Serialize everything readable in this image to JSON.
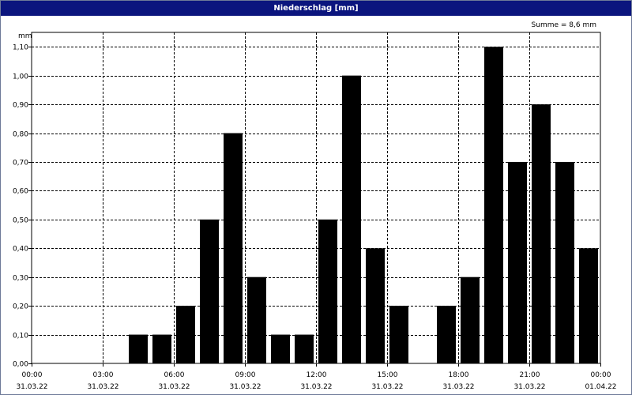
{
  "window": {
    "title": "Niederschlag [mm]"
  },
  "chart_data": {
    "type": "bar",
    "title": "Niederschlag [mm]",
    "ylabel": "mm",
    "annotation": "Summe = 8,6 mm",
    "ylim": [
      0,
      1.15
    ],
    "y_ticks": [
      "0,00",
      "0,10",
      "0,20",
      "0,30",
      "0,40",
      "0,50",
      "0,60",
      "0,70",
      "0,80",
      "0,90",
      "1,00",
      "1,10"
    ],
    "x_ticks": [
      {
        "time": "00:00",
        "date": "31.03.22"
      },
      {
        "time": "03:00",
        "date": "31.03.22"
      },
      {
        "time": "06:00",
        "date": "31.03.22"
      },
      {
        "time": "09:00",
        "date": "31.03.22"
      },
      {
        "time": "12:00",
        "date": "31.03.22"
      },
      {
        "time": "15:00",
        "date": "31.03.22"
      },
      {
        "time": "18:00",
        "date": "31.03.22"
      },
      {
        "time": "21:00",
        "date": "31.03.22"
      },
      {
        "time": "00:00",
        "date": "01.04.22"
      }
    ],
    "bar_interval_hours": 1,
    "values": [
      0,
      0,
      0,
      0,
      0.1,
      0.1,
      0.2,
      0.5,
      0.8,
      0.3,
      0.1,
      0.1,
      0.5,
      1.0,
      0.4,
      0.2,
      0,
      0.2,
      0.3,
      1.1,
      0.7,
      0.9,
      0.7,
      0.4
    ],
    "grid": true,
    "colors": {
      "bar": "#000000",
      "grid": "#000000",
      "title_bar": "#0b157e"
    }
  }
}
